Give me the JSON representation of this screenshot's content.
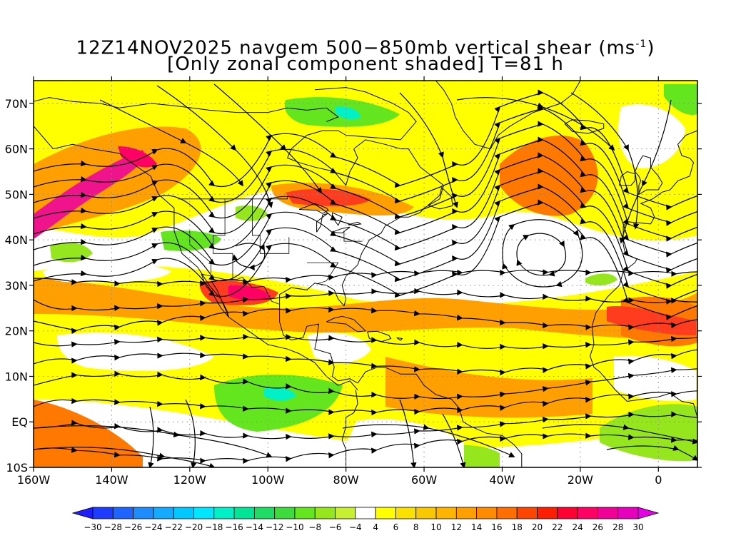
{
  "title": {
    "line1_prefix": "12Z14NOV2025 navgem 500−850mb vertical shear (ms",
    "line1_sup": "-1",
    "line1_suffix": ")",
    "line2": "[Only zonal component shaded] T=81 h"
  },
  "map": {
    "lon_range": [
      -160,
      10
    ],
    "lat_range": [
      -10,
      75
    ],
    "lon_ticks": [
      {
        "value": -160,
        "label": "160W"
      },
      {
        "value": -140,
        "label": "140W"
      },
      {
        "value": -120,
        "label": "120W"
      },
      {
        "value": -100,
        "label": "100W"
      },
      {
        "value": -80,
        "label": "80W"
      },
      {
        "value": -60,
        "label": "60W"
      },
      {
        "value": -40,
        "label": "40W"
      },
      {
        "value": -20,
        "label": "20W"
      },
      {
        "value": 0,
        "label": "0"
      }
    ],
    "lat_ticks": [
      {
        "value": -10,
        "label": "10S"
      },
      {
        "value": 0,
        "label": "EQ"
      },
      {
        "value": 10,
        "label": "10N"
      },
      {
        "value": 20,
        "label": "20N"
      },
      {
        "value": 30,
        "label": "30N"
      },
      {
        "value": 40,
        "label": "40N"
      },
      {
        "value": 50,
        "label": "50N"
      },
      {
        "value": 60,
        "label": "60N"
      },
      {
        "value": 70,
        "label": "70N"
      }
    ],
    "gridlines": "dotted"
  },
  "colorbar": {
    "labels": [
      "-30",
      "-28",
      "-26",
      "-24",
      "-22",
      "-20",
      "-18",
      "-16",
      "-14",
      "-12",
      "-10",
      "-8",
      "-6",
      "-4",
      "4",
      "6",
      "8",
      "10",
      "12",
      "14",
      "16",
      "18",
      "20",
      "22",
      "24",
      "26",
      "28",
      "30"
    ],
    "colors": [
      "#1e1eff",
      "#1e3cff",
      "#1e64ff",
      "#1e8cff",
      "#14aaff",
      "#00c8ff",
      "#00e6ff",
      "#00f0c8",
      "#00e696",
      "#1edc64",
      "#3cdc3c",
      "#64e61e",
      "#96e61e",
      "#c8f032",
      "#ffffff",
      "#ffff00",
      "#fae100",
      "#fac800",
      "#ffb400",
      "#ffa000",
      "#ff8c00",
      "#ff6e00",
      "#ff4600",
      "#ff1e00",
      "#ff0032",
      "#ff0064",
      "#f00096",
      "#e600be",
      "#e600e6"
    ]
  },
  "shading_legend": {
    "green": "#64e61e",
    "lightgreen": "#96e61e",
    "cyan": "#00f0c8",
    "yellow": "#ffff00",
    "gold": "#fac800",
    "orange": "#ffa000",
    "deeporange": "#ff7800",
    "red": "#ff3c1e",
    "pink": "#ff0064",
    "magenta": "#f0148c"
  }
}
